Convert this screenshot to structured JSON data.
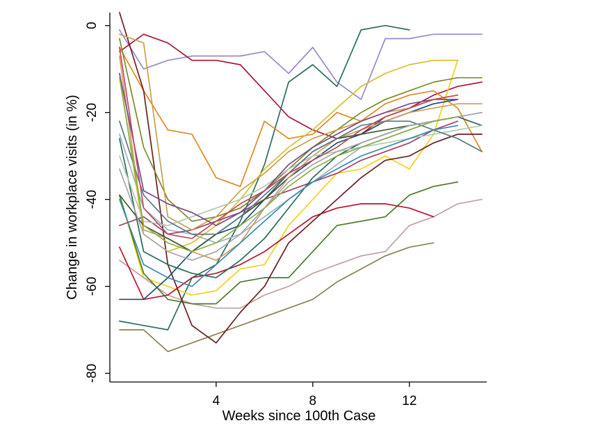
{
  "chart_data": {
    "type": "line",
    "xlabel": "Weeks since 100th Case",
    "ylabel": "Change in workplace visits (in %)",
    "xlim": [
      -0.4,
      15.2
    ],
    "ylim": [
      -82,
      3
    ],
    "xticks": [
      4,
      8,
      12
    ],
    "yticks": [
      0,
      -20,
      -40,
      -60,
      -80
    ],
    "grid": false,
    "legend": "none",
    "series": [
      {
        "color": "#9a8ac8",
        "x": [
          0,
          1,
          2,
          3,
          4,
          5,
          6,
          7,
          8,
          9,
          10,
          11,
          12,
          13,
          14,
          15
        ],
        "y": [
          -1,
          -10,
          -8,
          -7,
          -7,
          -7,
          -6,
          -11,
          -5,
          -13,
          -17,
          -3,
          -3,
          -2,
          -2,
          -2
        ]
      },
      {
        "color": "#a8173a",
        "x": [
          0,
          1,
          2,
          3,
          4,
          5,
          6,
          7,
          8,
          9,
          10,
          11,
          12,
          13,
          14,
          15
        ],
        "y": [
          -6,
          -2,
          -4,
          -8,
          -8,
          -9,
          -15,
          -21,
          -24,
          -26,
          -25,
          -21,
          -19,
          -16,
          -14,
          -13
        ]
      },
      {
        "color": "#2e6b62",
        "x": [
          0,
          1,
          2,
          3,
          4,
          5,
          6,
          7,
          8,
          9,
          10,
          11,
          12
        ],
        "y": [
          -68,
          -69,
          -70,
          -58,
          -55,
          -45,
          -32,
          -13,
          -9,
          -14,
          -1,
          0,
          -1
        ]
      },
      {
        "color": "#e08a1e",
        "x": [
          0,
          1,
          2,
          3,
          4,
          5,
          6,
          7,
          8,
          9,
          10,
          11,
          12,
          13,
          14,
          15
        ],
        "y": [
          -5,
          -15,
          -24,
          -25,
          -35,
          -37,
          -22,
          -26,
          -25,
          -20,
          -22,
          -18,
          -16,
          -15,
          -19,
          -29
        ]
      },
      {
        "color": "#f2d21a",
        "x": [
          0,
          1,
          2,
          3,
          4,
          5,
          6,
          7,
          8,
          9,
          10,
          11,
          12,
          13,
          14
        ],
        "y": [
          -39,
          -58,
          -60,
          -62,
          -61,
          -56,
          -55,
          -46,
          -40,
          -34,
          -33,
          -30,
          -33,
          -25,
          -8
        ]
      },
      {
        "color": "#8a8250",
        "x": [
          0,
          1,
          2,
          3,
          4,
          5,
          6,
          7,
          8,
          9,
          10,
          11,
          12,
          13
        ],
        "y": [
          -70,
          -70,
          -75,
          -73,
          -71,
          -69,
          -67,
          -65,
          -63,
          -59,
          -56,
          -53,
          -51,
          -50
        ]
      },
      {
        "color": "#c0a0a0",
        "x": [
          0,
          1,
          2,
          3,
          4,
          5,
          6,
          7,
          8,
          9,
          10,
          11,
          12,
          13,
          14,
          15
        ],
        "y": [
          -54,
          -58,
          -62,
          -64,
          -65,
          -65,
          -62,
          -60,
          -57,
          -55,
          -53,
          -52,
          -46,
          -44,
          -41,
          -40
        ]
      },
      {
        "color": "#4a7a2a",
        "x": [
          0,
          1,
          2,
          3,
          4,
          5,
          6,
          7,
          8,
          9,
          10,
          11,
          12,
          13,
          14
        ],
        "y": [
          -39,
          -57,
          -63,
          -64,
          -64,
          -59,
          -58,
          -58,
          -52,
          -46,
          -45,
          -44,
          -39,
          -37,
          -36
        ]
      },
      {
        "color": "#b8142e",
        "x": [
          0,
          1,
          2,
          3,
          4,
          5,
          6,
          7,
          8,
          9,
          10,
          11,
          12,
          13
        ],
        "y": [
          -51,
          -63,
          -62,
          -58,
          -57,
          -55,
          -52,
          -48,
          -44,
          -42,
          -41,
          -41,
          -42,
          -44
        ]
      },
      {
        "color": "#6a1e20",
        "x": [
          0,
          1,
          2,
          3,
          4,
          5,
          6,
          7,
          8,
          9,
          10,
          11,
          12,
          13,
          14,
          15
        ],
        "y": [
          3,
          -15,
          -55,
          -69,
          -73,
          -66,
          -60,
          -50,
          -45,
          -40,
          -35,
          -31,
          -30,
          -27,
          -25,
          -25
        ]
      },
      {
        "color": "#1f4f72",
        "x": [
          0,
          1,
          2,
          3,
          4,
          5,
          6,
          7,
          8,
          9,
          10,
          11,
          12,
          13,
          14
        ],
        "y": [
          -63,
          -63,
          -58,
          -52,
          -48,
          -46,
          -40,
          -35,
          -31,
          -27,
          -25,
          -22,
          -20,
          -18,
          -17
        ]
      },
      {
        "color": "#9bb0c0",
        "x": [
          0,
          1,
          2,
          3,
          4,
          5,
          6,
          7,
          8,
          9,
          10,
          11,
          12,
          13,
          14,
          15
        ],
        "y": [
          -25,
          -42,
          -47,
          -48,
          -50,
          -48,
          -44,
          -40,
          -36,
          -32,
          -28,
          -26,
          -24,
          -22,
          -21,
          -20
        ]
      },
      {
        "color": "#7a8a2a",
        "x": [
          0,
          1,
          2,
          3,
          4,
          5,
          6,
          7,
          8,
          9,
          10,
          11,
          12,
          13,
          14,
          15
        ],
        "y": [
          -3,
          -28,
          -40,
          -45,
          -44,
          -42,
          -38,
          -33,
          -28,
          -24,
          -20,
          -17,
          -15,
          -13,
          -12,
          -12
        ]
      },
      {
        "color": "#d4c02a",
        "x": [
          0,
          1,
          2,
          3,
          4,
          5,
          6,
          7,
          8,
          9,
          10,
          11,
          12,
          13,
          14
        ],
        "y": [
          -11,
          -48,
          -52,
          -50,
          -46,
          -40,
          -33,
          -28,
          -24,
          -19,
          -14,
          -11,
          -9,
          -8,
          -8
        ]
      },
      {
        "color": "#a0406a",
        "x": [
          0,
          1,
          2,
          3,
          4,
          5,
          6,
          7,
          8,
          9,
          10,
          11,
          12,
          13,
          14
        ],
        "y": [
          -46,
          -44,
          -48,
          -47,
          -45,
          -43,
          -40,
          -38,
          -36,
          -34,
          -31,
          -29,
          -27,
          -24,
          -22
        ]
      },
      {
        "color": "#2a6a5a",
        "x": [
          0,
          1,
          2,
          3,
          4,
          5,
          6,
          7,
          8,
          9,
          10,
          11,
          12,
          13,
          14,
          15
        ],
        "y": [
          -26,
          -52,
          -55,
          -57,
          -58,
          -54,
          -49,
          -42,
          -35,
          -30,
          -27,
          -25,
          -23,
          -22,
          -21,
          -23
        ]
      },
      {
        "color": "#d09a60",
        "x": [
          0,
          1,
          2,
          3,
          4,
          5,
          6,
          7,
          8,
          9,
          10,
          11,
          12,
          13,
          14,
          15
        ],
        "y": [
          -7,
          -47,
          -49,
          -52,
          -54,
          -50,
          -42,
          -35,
          -30,
          -26,
          -24,
          -22,
          -20,
          -19,
          -18,
          -18
        ]
      },
      {
        "color": "#3a5a2a",
        "x": [
          0,
          1,
          2,
          3,
          4,
          5,
          6,
          7,
          8,
          9,
          10,
          11,
          12,
          13,
          14
        ],
        "y": [
          -39,
          -46,
          -49,
          -52,
          -48,
          -44,
          -40,
          -34,
          -29,
          -26,
          -25,
          -24,
          -23,
          -22,
          -21
        ]
      },
      {
        "color": "#c9a04a",
        "x": [
          0,
          1,
          2,
          3,
          4,
          5,
          6,
          7,
          8,
          9,
          10,
          11,
          12,
          13,
          14
        ],
        "y": [
          -2,
          -4,
          -44,
          -47,
          -44,
          -38,
          -34,
          -29,
          -26,
          -24,
          -22,
          -20,
          -19,
          -17,
          -16
        ]
      },
      {
        "color": "#b0c8b0",
        "x": [
          0,
          1,
          2,
          3,
          4,
          5,
          6,
          7,
          8,
          9,
          10,
          11,
          12,
          13,
          14,
          15
        ],
        "y": [
          -30,
          -45,
          -46,
          -44,
          -42,
          -40,
          -37,
          -33,
          -30,
          -29,
          -28,
          -27,
          -26,
          -25,
          -24,
          -23
        ]
      },
      {
        "color": "#7a4a8a",
        "x": [
          0,
          1,
          2,
          3,
          4,
          5,
          6,
          7,
          8,
          9,
          10,
          11,
          12,
          13,
          14
        ],
        "y": [
          -11,
          -38,
          -41,
          -43,
          -46,
          -43,
          -38,
          -32,
          -28,
          -25,
          -22,
          -20,
          -18,
          -17,
          -17
        ]
      },
      {
        "color": "#587a8a",
        "x": [
          0,
          1,
          2,
          3,
          4,
          5,
          6,
          7,
          8,
          9,
          10,
          11,
          12,
          13,
          14,
          15
        ],
        "y": [
          -22,
          -39,
          -45,
          -48,
          -48,
          -44,
          -39,
          -34,
          -29,
          -26,
          -23,
          -22,
          -22,
          -24,
          -26,
          -29
        ]
      },
      {
        "color": "#c04a60",
        "x": [
          0,
          1,
          2,
          3,
          4,
          5,
          6,
          7,
          8,
          9,
          10,
          11,
          12,
          13,
          14
        ],
        "y": [
          -5,
          -42,
          -48,
          -49,
          -45,
          -41,
          -38,
          -34,
          -31,
          -28,
          -24,
          -21,
          -19,
          -17,
          -16
        ]
      },
      {
        "color": "#a4a6a8",
        "x": [
          0,
          1,
          2,
          3,
          4,
          5,
          6,
          7,
          8,
          9,
          10,
          11,
          12,
          13,
          14,
          15
        ],
        "y": [
          -33,
          -48,
          -52,
          -54,
          -52,
          -48,
          -42,
          -36,
          -32,
          -29,
          -27,
          -25,
          -23,
          -22,
          -21,
          -20
        ]
      },
      {
        "color": "#3a8ab0",
        "x": [
          0,
          1,
          2,
          3,
          4,
          5,
          6,
          7,
          8,
          9,
          10,
          11,
          12,
          13,
          14
        ],
        "y": [
          -40,
          -55,
          -58,
          -60,
          -55,
          -50,
          -45,
          -40,
          -36,
          -33,
          -30,
          -28,
          -26,
          -24,
          -23
        ]
      },
      {
        "color": "#8ab04a",
        "x": [
          0,
          1,
          2,
          3,
          4,
          5,
          6,
          7,
          8,
          9,
          10,
          11,
          12,
          13,
          14
        ],
        "y": [
          -12,
          -46,
          -50,
          -52,
          -50,
          -46,
          -42,
          -37,
          -33,
          -30,
          -28,
          -26,
          -24,
          -22,
          -21
        ]
      }
    ]
  }
}
